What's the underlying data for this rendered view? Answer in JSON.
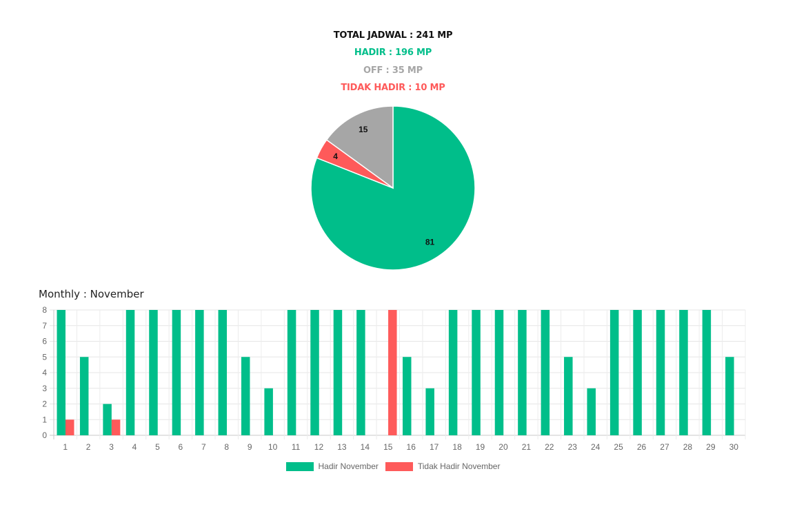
{
  "summary": {
    "total": "TOTAL JADWAL : 241 MP",
    "hadir": "HADIR : 196 MP",
    "off": "OFF : 35 MP",
    "tidak_hadir": "TIDAK HADIR : 10 MP"
  },
  "colors": {
    "hadir": "#00be8a",
    "off": "#a6a6a6",
    "tidak_hadir": "#fe5a5a",
    "text": "#111111"
  },
  "monthly_title": "Monthly : November",
  "chart_data": [
    {
      "type": "pie",
      "slices": [
        {
          "label": "81",
          "value": 81,
          "color": "#00be8a"
        },
        {
          "label": "4",
          "value": 4,
          "color": "#fe5a5a"
        },
        {
          "label": "15",
          "value": 15,
          "color": "#a6a6a6"
        }
      ]
    },
    {
      "type": "bar",
      "categories": [
        "1",
        "2",
        "3",
        "4",
        "5",
        "6",
        "7",
        "8",
        "9",
        "10",
        "11",
        "12",
        "13",
        "14",
        "15",
        "16",
        "17",
        "18",
        "19",
        "20",
        "21",
        "22",
        "23",
        "24",
        "25",
        "26",
        "27",
        "28",
        "29",
        "30"
      ],
      "series": [
        {
          "name": "Hadir November",
          "color": "#00be8a",
          "values": [
            8,
            5,
            2,
            8,
            8,
            8,
            8,
            8,
            5,
            3,
            8,
            8,
            8,
            8,
            0,
            5,
            3,
            8,
            8,
            8,
            8,
            8,
            5,
            3,
            8,
            8,
            8,
            8,
            8,
            5
          ]
        },
        {
          "name": "Tidak Hadir November",
          "color": "#fe5a5a",
          "values": [
            1,
            0,
            1,
            0,
            0,
            0,
            0,
            0,
            0,
            0,
            0,
            0,
            0,
            0,
            8,
            0,
            0,
            0,
            0,
            0,
            0,
            0,
            0,
            0,
            0,
            0,
            0,
            0,
            0,
            0
          ]
        }
      ],
      "yticks": [
        "0",
        "1",
        "2",
        "3",
        "4",
        "5",
        "6",
        "7",
        "8"
      ],
      "ylim": [
        0,
        8
      ],
      "grid": true,
      "legend": "bottom"
    }
  ]
}
